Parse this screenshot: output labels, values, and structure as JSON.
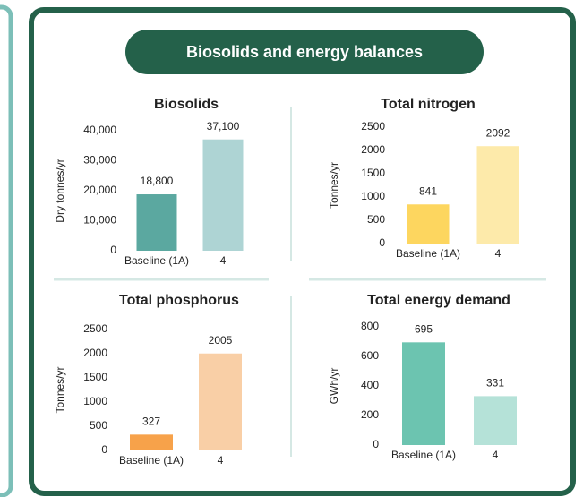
{
  "header": {
    "title": "Biosolids and energy balances"
  },
  "chart_data": [
    {
      "type": "bar",
      "title": "Biosolids",
      "y_label": "Dry tonnes/yr",
      "categories": [
        "Baseline (1A)",
        "4"
      ],
      "values": [
        18800,
        37100
      ],
      "value_labels": [
        "18,800",
        "37,100"
      ],
      "colors": [
        "#5ba8a0",
        "#aed4d4"
      ],
      "ylim": [
        0,
        40000
      ],
      "yticks": [
        0,
        {
          "value": 10000,
          "label": "10,000"
        },
        {
          "value": 20000,
          "label": "20,000"
        },
        {
          "value": 30000,
          "label": "30,000"
        },
        {
          "value": 40000,
          "label": "40,000"
        }
      ]
    },
    {
      "type": "bar",
      "title": "Total nitrogen",
      "y_label": "Tonnes/yr",
      "categories": [
        "Baseline (1A)",
        "4"
      ],
      "values": [
        841,
        2092
      ],
      "colors": [
        "#fdd65f",
        "#fdeaaa"
      ],
      "ylim": [
        0,
        2500
      ],
      "yticks": [
        0,
        500,
        1000,
        1500,
        2000,
        2500
      ]
    },
    {
      "type": "bar",
      "title": "Total phosphorus",
      "y_label": "Tonnes/yr",
      "categories": [
        "Baseline (1A)",
        "4"
      ],
      "values": [
        327,
        2005
      ],
      "colors": [
        "#f7a24a",
        "#f9cfa6"
      ],
      "ylim": [
        0,
        2500
      ],
      "yticks": [
        0,
        500,
        1000,
        1500,
        2000,
        2500
      ]
    },
    {
      "type": "bar",
      "title": "Total energy demand",
      "y_label": "GWh/yr",
      "categories": [
        "Baseline (1A)",
        "4"
      ],
      "values": [
        695,
        331
      ],
      "colors": [
        "#6cc4b0",
        "#b5e2d8"
      ],
      "ylim": [
        0,
        800
      ],
      "yticks": [
        0,
        200,
        400,
        600,
        800
      ]
    }
  ]
}
